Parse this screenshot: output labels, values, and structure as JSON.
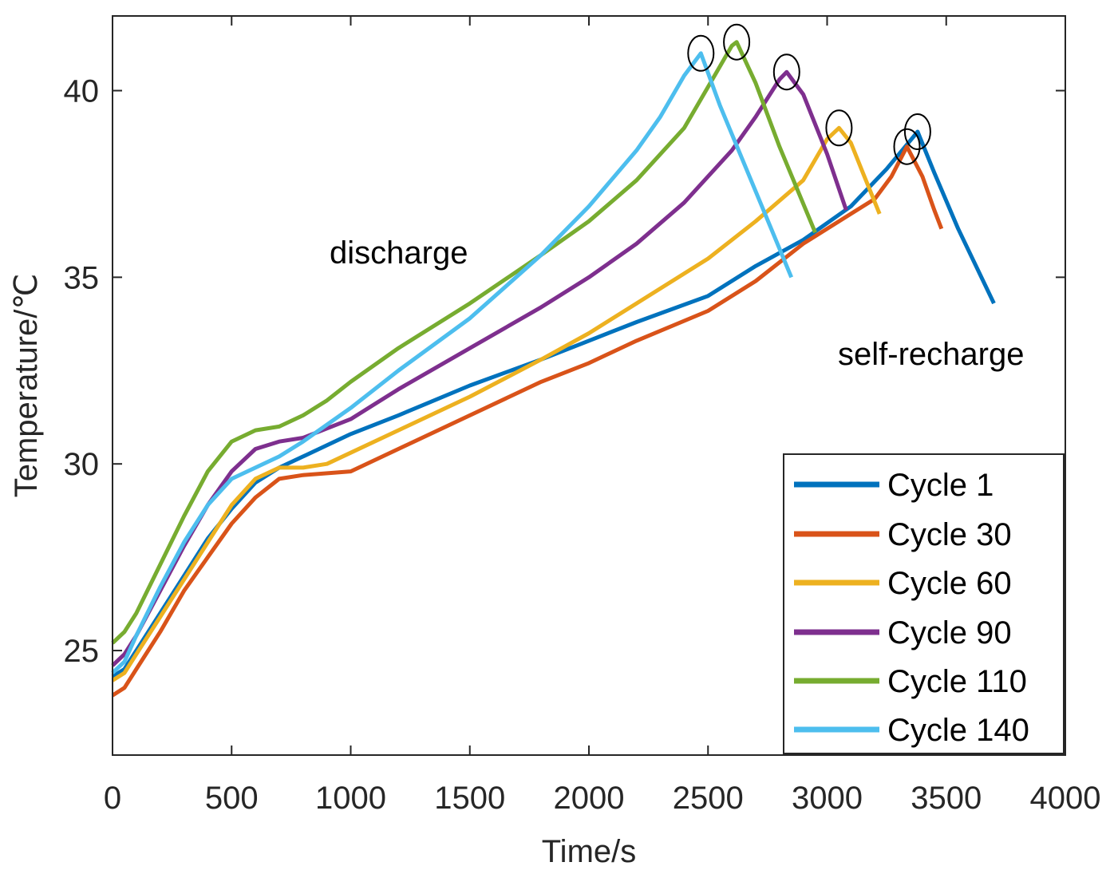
{
  "chart_data": {
    "type": "line",
    "title": "",
    "xlabel": "Time/s",
    "ylabel": "Temperature/℃",
    "xlim": [
      0,
      4000
    ],
    "ylim": [
      22.2,
      42
    ],
    "xticks": [
      0,
      500,
      1000,
      1500,
      2000,
      2500,
      3000,
      3500,
      4000
    ],
    "yticks": [
      25,
      30,
      35,
      40
    ],
    "xtick_labels": [
      "0",
      "500",
      "1000",
      "1500",
      "2000",
      "2500",
      "3000",
      "3500",
      "4000"
    ],
    "ytick_labels": [
      "25",
      "30",
      "35",
      "40"
    ],
    "grid": false,
    "legend_position": "bottom-right",
    "annotations": [
      {
        "text": "discharge",
        "x": 1250,
        "y": 35.6
      },
      {
        "text": "self-recharge",
        "x": 3640,
        "y": 32.9
      }
    ],
    "series": [
      {
        "name": "Cycle 1",
        "color": "#0072BD",
        "x": [
          0,
          50,
          100,
          200,
          300,
          400,
          500,
          600,
          700,
          800,
          1000,
          1200,
          1500,
          1800,
          2000,
          2200,
          2500,
          2700,
          2900,
          3100,
          3250,
          3380,
          3450,
          3550,
          3700
        ],
        "y": [
          24.3,
          24.5,
          25.0,
          26.0,
          27.0,
          28.0,
          28.8,
          29.5,
          29.9,
          30.2,
          30.8,
          31.3,
          32.1,
          32.8,
          33.3,
          33.8,
          34.5,
          35.3,
          36.0,
          36.9,
          37.9,
          38.9,
          37.8,
          36.3,
          34.3
        ],
        "peak_circled": [
          3380,
          38.9
        ]
      },
      {
        "name": "Cycle 30",
        "color": "#D95319",
        "x": [
          0,
          50,
          100,
          200,
          300,
          400,
          500,
          600,
          700,
          800,
          1000,
          1200,
          1500,
          1800,
          2000,
          2200,
          2500,
          2700,
          2900,
          3100,
          3200,
          3270,
          3335,
          3400,
          3450,
          3480
        ],
        "y": [
          23.8,
          24.0,
          24.5,
          25.5,
          26.6,
          27.5,
          28.4,
          29.1,
          29.6,
          29.7,
          29.8,
          30.4,
          31.3,
          32.2,
          32.7,
          33.3,
          34.1,
          34.9,
          35.9,
          36.7,
          37.1,
          37.7,
          38.5,
          37.7,
          36.8,
          36.3
        ],
        "peak_circled": [
          3335,
          38.5
        ]
      },
      {
        "name": "Cycle 60",
        "color": "#EDB120",
        "x": [
          0,
          50,
          100,
          200,
          300,
          400,
          500,
          600,
          700,
          800,
          900,
          1000,
          1200,
          1500,
          1800,
          2000,
          2200,
          2500,
          2700,
          2900,
          3000,
          3050,
          3100,
          3150,
          3220
        ],
        "y": [
          24.2,
          24.4,
          24.9,
          25.9,
          26.9,
          27.9,
          28.9,
          29.6,
          29.9,
          29.9,
          30.0,
          30.3,
          30.9,
          31.8,
          32.8,
          33.5,
          34.3,
          35.5,
          36.5,
          37.6,
          38.7,
          39.0,
          38.6,
          37.8,
          36.7
        ],
        "peak_circled": [
          3050,
          39.0
        ]
      },
      {
        "name": "Cycle 90",
        "color": "#7E2F8E",
        "x": [
          0,
          50,
          100,
          200,
          300,
          400,
          500,
          600,
          700,
          800,
          1000,
          1200,
          1500,
          1800,
          2000,
          2200,
          2400,
          2600,
          2700,
          2800,
          2830,
          2900,
          3000,
          3080
        ],
        "y": [
          24.6,
          24.9,
          25.4,
          26.6,
          27.8,
          28.9,
          29.8,
          30.4,
          30.6,
          30.7,
          31.2,
          32.0,
          33.1,
          34.2,
          35.0,
          35.9,
          37.0,
          38.4,
          39.3,
          40.3,
          40.5,
          39.9,
          38.3,
          36.8
        ],
        "peak_circled": [
          2830,
          40.5
        ]
      },
      {
        "name": "Cycle 110",
        "color": "#77AC30",
        "x": [
          0,
          50,
          100,
          200,
          300,
          400,
          500,
          600,
          700,
          800,
          900,
          1000,
          1200,
          1500,
          1800,
          2000,
          2200,
          2400,
          2500,
          2600,
          2620,
          2700,
          2800,
          2950
        ],
        "y": [
          25.2,
          25.5,
          26.0,
          27.3,
          28.6,
          29.8,
          30.6,
          30.9,
          31.0,
          31.3,
          31.7,
          32.2,
          33.1,
          34.3,
          35.6,
          36.5,
          37.6,
          39.0,
          40.1,
          41.2,
          41.3,
          40.2,
          38.5,
          36.2
        ],
        "peak_circled": [
          2620,
          41.3
        ]
      },
      {
        "name": "Cycle 140",
        "color": "#4DBEEE",
        "x": [
          0,
          50,
          100,
          200,
          300,
          400,
          500,
          600,
          700,
          800,
          1000,
          1200,
          1500,
          1800,
          2000,
          2200,
          2300,
          2400,
          2470,
          2550,
          2700,
          2850
        ],
        "y": [
          24.4,
          24.7,
          25.4,
          26.7,
          27.9,
          28.9,
          29.6,
          29.9,
          30.2,
          30.6,
          31.5,
          32.5,
          33.9,
          35.6,
          36.9,
          38.4,
          39.3,
          40.4,
          41.0,
          39.6,
          37.3,
          35.0
        ],
        "peak_circled": [
          2470,
          41.0
        ]
      }
    ]
  }
}
